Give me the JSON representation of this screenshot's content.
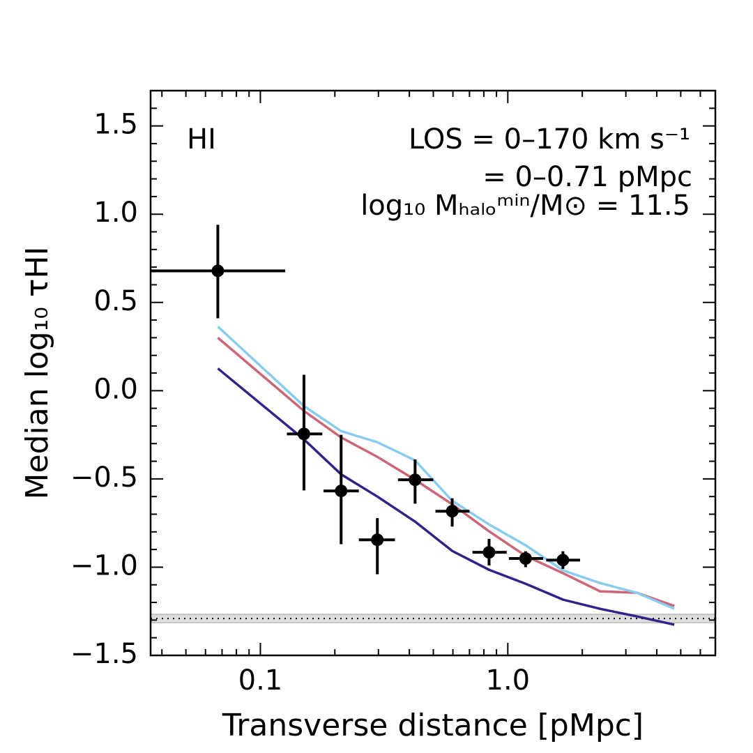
{
  "chart_data": {
    "type": "line",
    "xlabel": "Transverse distance [pMpc]",
    "ylabel": "Median log₁₀ τHI",
    "annotations": [
      "HI",
      "LOS = 0–170 km s⁻¹",
      "= 0–0.71 pMpc",
      "log₁₀ Mₕₐₗₒᵐⁱⁿ/M⊙ = 11.5"
    ],
    "xscale": "log",
    "xlim": [
      0.036,
      6.9
    ],
    "ylim": [
      -1.5,
      1.7
    ],
    "xticks": [
      0.1,
      {
        "value": 1.0,
        "label": "1.0"
      }
    ],
    "xminor": [
      0.04,
      0.05,
      0.06,
      0.07,
      0.08,
      0.09,
      0.2,
      0.3,
      0.4,
      0.5,
      0.6,
      0.7,
      0.8,
      0.9,
      2,
      3,
      4,
      5,
      6
    ],
    "yticks": [
      {
        "value": -1.5,
        "label": "−1.5"
      },
      {
        "value": -1.0,
        "label": "−1.0"
      },
      {
        "value": -0.5,
        "label": "−0.5"
      },
      {
        "value": 0,
        "label": "0.0"
      },
      0.5,
      {
        "value": 1.0,
        "label": "1.0"
      },
      1.5
    ],
    "yminor": [
      -1.4,
      -1.3,
      -1.2,
      -1.1,
      -0.9,
      -0.8,
      -0.7,
      -0.6,
      -0.4,
      -0.3,
      -0.2,
      -0.1,
      0.1,
      0.2,
      0.3,
      0.4,
      0.6,
      0.7,
      0.8,
      0.9,
      1.1,
      1.2,
      1.3,
      1.4,
      1.6,
      1.7
    ],
    "band": {
      "low": -1.315,
      "high": -1.267,
      "color": "#dddddd",
      "line": -1.291
    },
    "points": {
      "color": "#000000",
      "x": [
        0.0673,
        0.15,
        0.212,
        0.297,
        0.422,
        0.596,
        0.84,
        1.18,
        1.67
      ],
      "values": [
        0.679,
        -0.245,
        -0.568,
        -0.845,
        -0.505,
        -0.683,
        -0.916,
        -0.951,
        -0.96
      ],
      "y_low": [
        0.41,
        -0.565,
        -0.87,
        -1.04,
        -0.64,
        -0.77,
        -0.99,
        -1.0,
        -1.01
      ],
      "y_high": [
        0.94,
        0.09,
        -0.25,
        -0.722,
        -0.39,
        -0.61,
        -0.84,
        -0.91,
        -0.91
      ],
      "x_low": [
        0.036,
        0.128,
        0.18,
        0.25,
        0.36,
        0.51,
        0.72,
        1.01,
        1.43
      ],
      "x_high": [
        0.126,
        0.178,
        0.25,
        0.35,
        0.5,
        0.7,
        0.99,
        1.39,
        1.96
      ]
    },
    "x": [
      0.0673,
      0.15,
      0.212,
      0.297,
      0.422,
      0.596,
      0.84,
      1.18,
      1.67,
      2.36,
      3.32,
      4.71
    ],
    "series": [
      {
        "color": "#332288",
        "values": [
          0.126,
          -0.276,
          -0.474,
          -0.6,
          -0.742,
          -0.908,
          -1.015,
          -1.094,
          -1.184,
          -1.236,
          -1.279,
          -1.326
        ]
      },
      {
        "color": "#CC6677",
        "values": [
          0.3,
          -0.115,
          -0.265,
          -0.375,
          -0.505,
          -0.644,
          -0.797,
          -0.936,
          -1.034,
          -1.137,
          -1.145,
          -1.22
        ]
      },
      {
        "color": "#88CCEE",
        "values": [
          0.363,
          -0.087,
          -0.229,
          -0.292,
          -0.395,
          -0.624,
          -0.758,
          -0.876,
          -1.018,
          -1.09,
          -1.145,
          -1.236
        ]
      }
    ]
  }
}
